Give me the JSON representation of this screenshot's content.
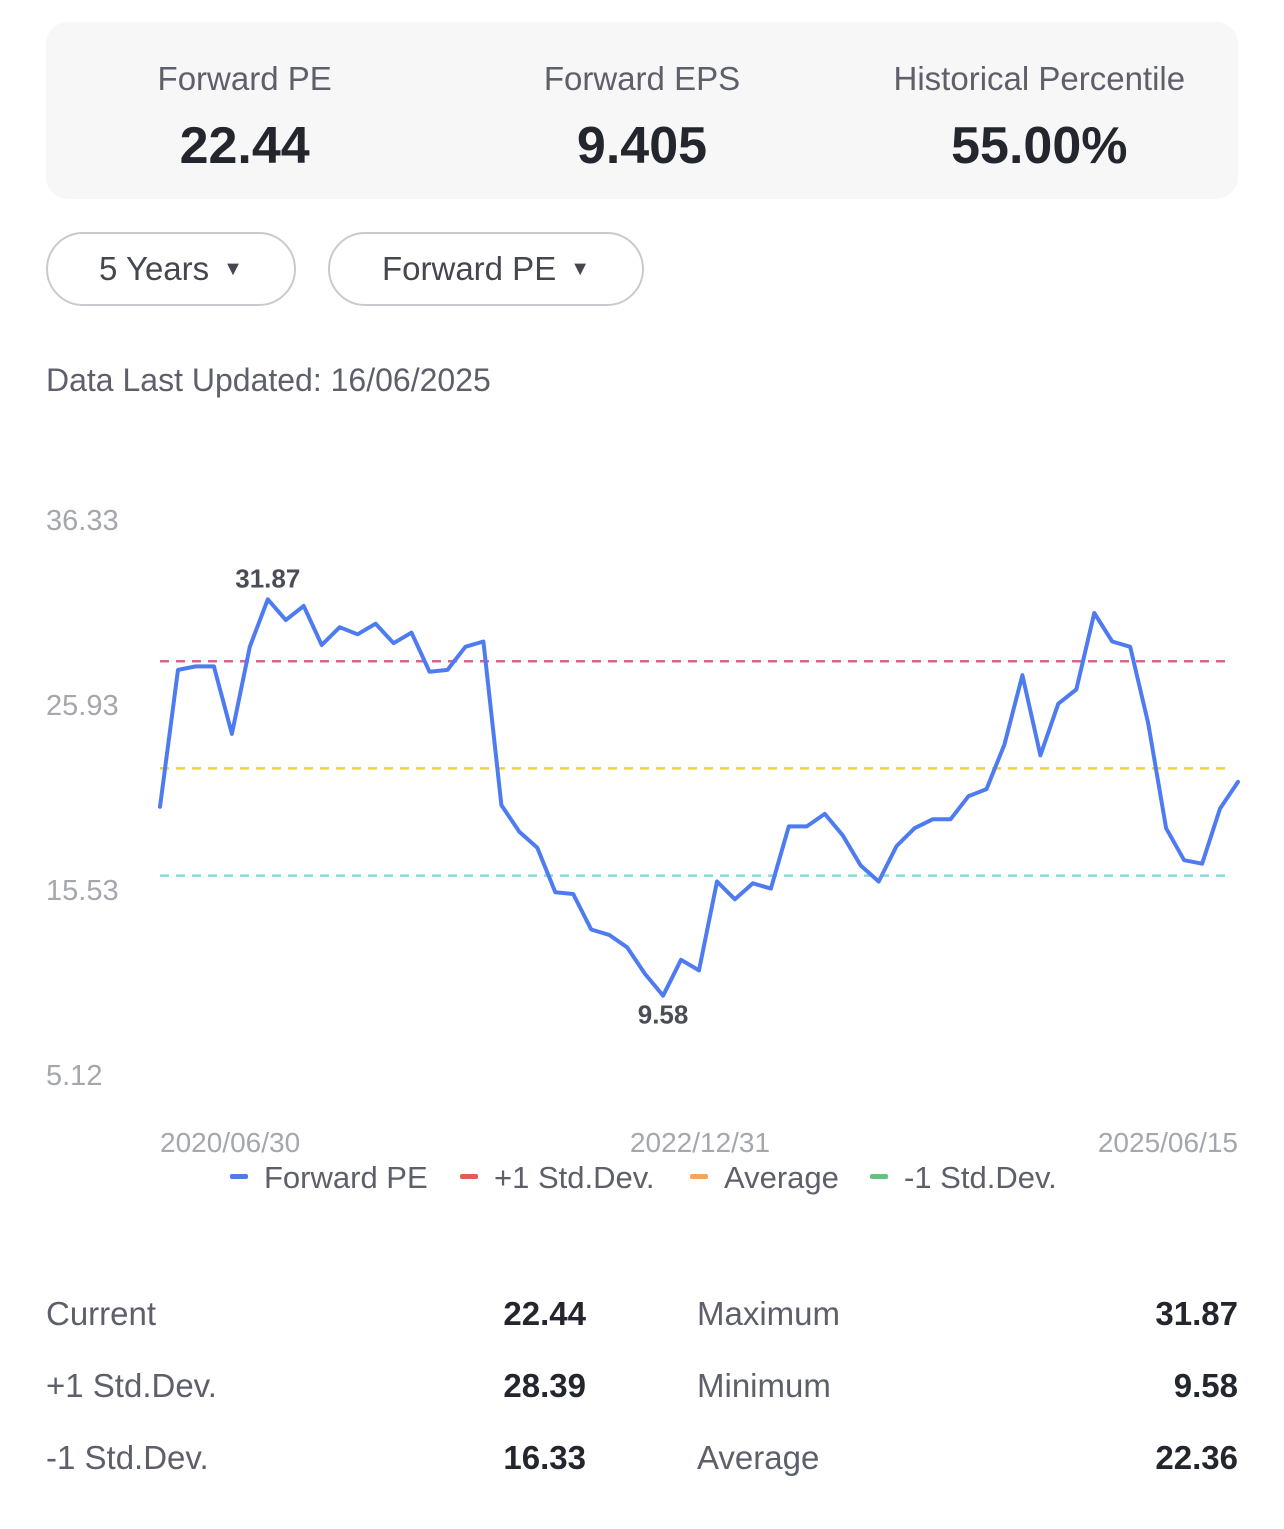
{
  "summary": [
    {
      "label": "Forward PE",
      "value": "22.44"
    },
    {
      "label": "Forward EPS",
      "value": "9.405"
    },
    {
      "label": "Historical Percentile",
      "value": "55.00%"
    }
  ],
  "filters": {
    "period": "5 Years",
    "metric": "Forward PE"
  },
  "updated": "Data Last Updated: 16/06/2025",
  "chart_data": {
    "type": "line",
    "ylim": [
      5.12,
      36.33
    ],
    "y_ticks": [
      "36.33",
      "25.93",
      "15.53",
      "5.12"
    ],
    "x_tick_labels": [
      "2020/06/30",
      "2022/12/31",
      "2025/06/15"
    ],
    "series": [
      {
        "name": "Forward PE",
        "color": "#4e7cf0",
        "values": [
          20.2,
          27.9,
          28.1,
          28.1,
          24.3,
          29.2,
          31.87,
          30.7,
          31.5,
          29.3,
          30.3,
          29.9,
          30.5,
          29.4,
          30.0,
          27.8,
          27.9,
          29.2,
          29.5,
          20.3,
          18.8,
          17.9,
          15.4,
          15.3,
          13.3,
          13.0,
          12.3,
          10.8,
          9.58,
          11.6,
          11.0,
          16.0,
          15.0,
          15.9,
          15.6,
          19.1,
          19.1,
          19.8,
          18.6,
          16.9,
          16.0,
          18.0,
          19.0,
          19.5,
          19.5,
          20.8,
          21.2,
          23.7,
          27.6,
          23.1,
          26.0,
          26.8,
          31.1,
          29.5,
          29.2,
          24.9,
          19.0,
          17.2,
          17.0,
          20.1,
          21.6
        ]
      },
      {
        "name": "+1 Std.Dev.",
        "color": "#e0628c",
        "legend_color": "#e35d50",
        "value": 28.39
      },
      {
        "name": "Average",
        "color": "#f2cf3e",
        "legend_color": "#f5a65b",
        "value": 22.36
      },
      {
        "name": "-1 Std.Dev.",
        "color": "#86ddd5",
        "legend_color": "#5fc47e",
        "value": 16.33
      }
    ],
    "annotations": [
      {
        "text": "31.87",
        "index": 6
      },
      {
        "text": "9.58",
        "index": 28
      }
    ],
    "legend": "bottom"
  },
  "stats": [
    {
      "label1": "Current",
      "value1": "22.44",
      "label2": "Maximum",
      "value2": "31.87"
    },
    {
      "label1": "+1 Std.Dev.",
      "value1": "28.39",
      "label2": "Minimum",
      "value2": "9.58"
    },
    {
      "label1": "-1 Std.Dev.",
      "value1": "16.33",
      "label2": "Average",
      "value2": "22.36"
    }
  ]
}
